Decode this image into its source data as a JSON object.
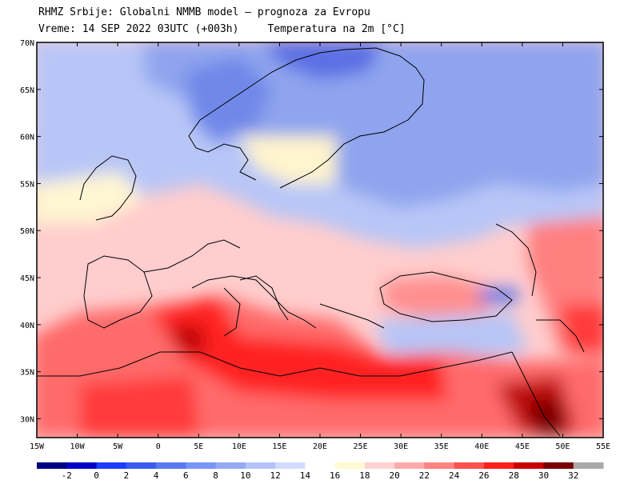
{
  "header": {
    "line1": "RHMZ Srbije: Globalni NMMB model — prognoza za Evropu",
    "valid_time": "Vreme: 14 SEP 2022 03UTC (+003h)",
    "field": "Temperatura na 2m [°C]"
  },
  "map": {
    "lon_range": [
      -15,
      55
    ],
    "lat_range": [
      28,
      70
    ],
    "lon_ticks": [
      "15W",
      "10W",
      "5W",
      "0",
      "5E",
      "10E",
      "15E",
      "20E",
      "25E",
      "30E",
      "35E",
      "40E",
      "45E",
      "50E",
      "55E"
    ],
    "lat_ticks": [
      "70N",
      "65N",
      "60N",
      "55N",
      "50N",
      "45N",
      "40N",
      "35N",
      "30N"
    ]
  },
  "colorbar": {
    "labels": [
      "-2",
      "0",
      "2",
      "4",
      "6",
      "8",
      "10",
      "12",
      "14",
      "16",
      "18",
      "20",
      "22",
      "24",
      "26",
      "28",
      "30",
      "32"
    ],
    "colors": [
      "#000080",
      "#0000c8",
      "#1e3cff",
      "#3c5af0",
      "#5a78f0",
      "#7896f5",
      "#96aaf5",
      "#b4c3fa",
      "#d2dcff",
      "#ffffff",
      "#fffad2",
      "#ffd2d2",
      "#ffaaaa",
      "#ff8282",
      "#ff5050",
      "#ff1e1e",
      "#c80000",
      "#780000",
      "#aaaaaa"
    ]
  }
}
